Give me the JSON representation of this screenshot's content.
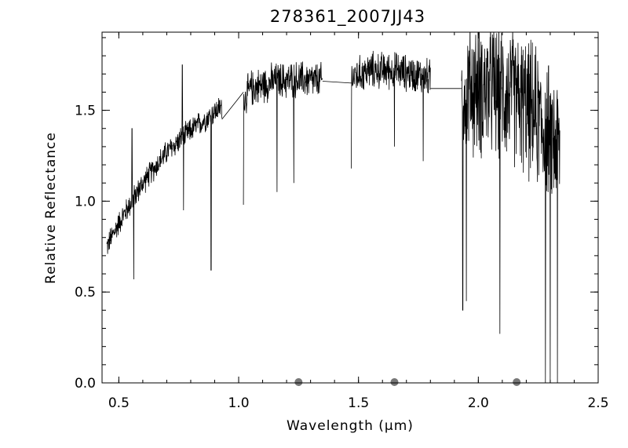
{
  "chart_data": {
    "type": "line",
    "title": "278361_2007JJ43",
    "xlabel": "Wavelength (μm)",
    "ylabel": "Relative Reflectance",
    "xlim": [
      0.43,
      2.5
    ],
    "ylim": [
      0.0,
      1.93
    ],
    "x_ticks": [
      {
        "value": 0.5,
        "label": "0.5"
      },
      {
        "value": 1.0,
        "label": "1.0"
      },
      {
        "value": 1.5,
        "label": "1.5"
      },
      {
        "value": 2.0,
        "label": "2.0"
      },
      {
        "value": 2.5,
        "label": "2.5"
      }
    ],
    "y_ticks": [
      {
        "value": 0.0,
        "label": "0.0"
      },
      {
        "value": 0.5,
        "label": "0.5"
      },
      {
        "value": 1.0,
        "label": "1.0"
      },
      {
        "value": 1.5,
        "label": "1.5"
      }
    ],
    "grid": false,
    "colors": {
      "spectrum": "#000000",
      "marker": "#777777",
      "axes": "#000000"
    },
    "series": [
      {
        "segments": [
          {
            "x_range": [
              0.45,
              0.93
            ],
            "trend": [
              [
                0.45,
                0.75
              ],
              [
                0.5,
                0.88
              ],
              [
                0.6,
                1.1
              ],
              [
                0.7,
                1.27
              ],
              [
                0.8,
                1.39
              ],
              [
                0.93,
                1.52
              ]
            ],
            "noise": 0.08,
            "spikes": [
              [
                0.555,
                1.4
              ],
              [
                0.562,
                0.57
              ],
              [
                0.765,
                1.75
              ],
              [
                0.77,
                0.95
              ],
              [
                0.885,
                0.62
              ]
            ]
          },
          {
            "x_range": [
              1.02,
              1.35
            ],
            "trend": [
              [
                1.02,
                1.55
              ],
              [
                1.05,
                1.62
              ],
              [
                1.15,
                1.66
              ],
              [
                1.25,
                1.67
              ],
              [
                1.35,
                1.66
              ]
            ],
            "noise": 0.12,
            "spikes": [
              [
                1.02,
                0.98
              ],
              [
                1.16,
                1.05
              ],
              [
                1.23,
                1.1
              ]
            ]
          },
          {
            "x_range": [
              1.47,
              1.8
            ],
            "trend": [
              [
                1.47,
                1.68
              ],
              [
                1.55,
                1.72
              ],
              [
                1.65,
                1.72
              ],
              [
                1.8,
                1.68
              ]
            ],
            "noise": 0.12,
            "spikes": [
              [
                1.47,
                1.18
              ],
              [
                1.65,
                1.3
              ],
              [
                1.77,
                1.22
              ]
            ]
          },
          {
            "x_range": [
              1.93,
              2.34
            ],
            "trend": [
              [
                1.93,
                1.62
              ],
              [
                2.05,
                1.62
              ],
              [
                2.15,
                1.58
              ],
              [
                2.25,
                1.45
              ],
              [
                2.34,
                1.3
              ]
            ],
            "noise": 0.45,
            "spikes": [
              [
                1.935,
                0.4
              ],
              [
                1.95,
                0.45
              ],
              [
                2.09,
                0.27
              ],
              [
                2.28,
                0.0
              ],
              [
                2.3,
                0.0
              ],
              [
                2.33,
                0.0
              ]
            ]
          }
        ],
        "bridges": [
          [
            [
              0.93,
              1.45
            ],
            [
              1.02,
              1.6
            ]
          ],
          [
            [
              1.35,
              1.66
            ],
            [
              1.47,
              1.65
            ]
          ],
          [
            [
              1.8,
              1.62
            ],
            [
              1.93,
              1.62
            ]
          ]
        ]
      }
    ],
    "markers": [
      {
        "x": 1.25,
        "y": 0.0
      },
      {
        "x": 1.65,
        "y": 0.0
      },
      {
        "x": 2.16,
        "y": 0.0
      }
    ]
  }
}
